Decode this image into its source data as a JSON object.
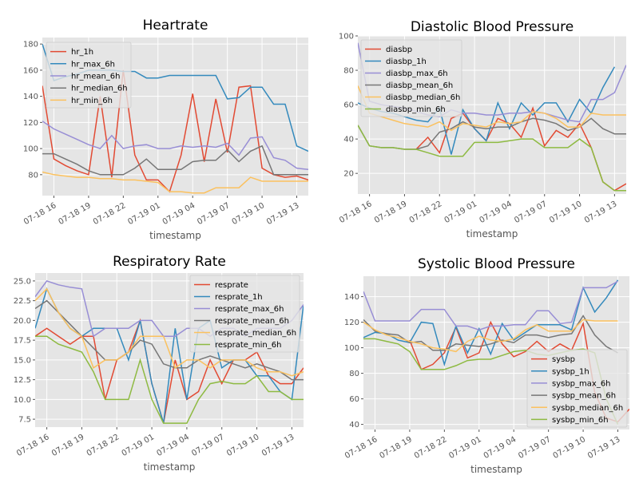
{
  "chart_data": [
    {
      "type": "line",
      "title": "Heartrate",
      "xlabel": "timestamp",
      "ylabel": "",
      "x": [
        "07-18 15:00",
        "07-18 16:00",
        "07-18 17:00",
        "07-18 18:00",
        "07-18 19:00",
        "07-18 20:00",
        "07-18 21:00",
        "07-18 22:00",
        "07-18 23:00",
        "07-19 00:00",
        "07-19 01:00",
        "07-19 02:00",
        "07-19 03:00",
        "07-19 04:00",
        "07-19 05:00",
        "07-19 06:00",
        "07-19 07:00",
        "07-19 08:00",
        "07-19 09:00",
        "07-19 10:00",
        "07-19 11:00",
        "07-19 12:00",
        "07-19 13:00",
        "07-19 14:00"
      ],
      "xticks": [
        "07-18 16",
        "07-18 19",
        "07-18 22",
        "07-19 01",
        "07-19 04",
        "07-19 07",
        "07-19 10",
        "07-19 13"
      ],
      "ylim": [
        64,
        185
      ],
      "yticks": [
        80,
        100,
        120,
        140,
        160,
        180
      ],
      "grid": true,
      "legend": "top-left",
      "series": [
        {
          "name": "hr_1h",
          "color": "#e24a33",
          "values": [
            148,
            92,
            87,
            83,
            80,
            140,
            78,
            160,
            95,
            76,
            76,
            67,
            95,
            142,
            90,
            138,
            97,
            147,
            148,
            85,
            80,
            78,
            79,
            76
          ]
        },
        {
          "name": "hr_max_6h",
          "color": "#348abd",
          "values": [
            180,
            152,
            155,
            157,
            160,
            160,
            160,
            159,
            159,
            154,
            154,
            156,
            156,
            156,
            156,
            156,
            138,
            139,
            147,
            147,
            134,
            134,
            102,
            98
          ]
        },
        {
          "name": "hr_mean_6h",
          "color": "#988ed5",
          "values": [
            121,
            115,
            111,
            107,
            103,
            100,
            110,
            100,
            102,
            103,
            100,
            100,
            102,
            101,
            102,
            101,
            104,
            95,
            108,
            109,
            93,
            91,
            85,
            84
          ]
        },
        {
          "name": "hr_median_6h",
          "color": "#777777",
          "values": [
            96,
            96,
            92,
            88,
            83,
            80,
            80,
            80,
            85,
            92,
            84,
            84,
            84,
            90,
            91,
            91,
            99,
            90,
            98,
            102,
            80,
            80,
            80,
            80
          ]
        },
        {
          "name": "hr_min_6h",
          "color": "#fbc15e",
          "values": [
            82,
            80,
            79,
            78,
            78,
            77,
            77,
            76,
            76,
            75,
            74,
            67,
            67,
            66,
            66,
            70,
            70,
            70,
            78,
            75,
            75,
            75,
            75,
            75
          ]
        }
      ]
    },
    {
      "type": "line",
      "title": "Diastolic Blood Pressure",
      "xlabel": "timestamp",
      "ylabel": "",
      "x": [
        "07-18 15:00",
        "07-18 16:00",
        "07-18 17:00",
        "07-18 18:00",
        "07-18 19:00",
        "07-18 20:00",
        "07-18 21:00",
        "07-18 22:00",
        "07-18 23:00",
        "07-19 00:00",
        "07-19 01:00",
        "07-19 02:00",
        "07-19 03:00",
        "07-19 04:00",
        "07-19 05:00",
        "07-19 06:00",
        "07-19 07:00",
        "07-19 08:00",
        "07-19 09:00",
        "07-19 10:00",
        "07-19 11:00",
        "07-19 12:00",
        "07-19 13:00",
        "07-19 14:00"
      ],
      "xticks": [
        "07-18 16",
        "07-18 19",
        "07-18 22",
        "07-19 01",
        "07-19 04",
        "07-19 07",
        "07-19 10",
        "07-19 13"
      ],
      "ylim": [
        8,
        100
      ],
      "yticks": [
        20,
        40,
        60,
        80,
        100
      ],
      "grid": true,
      "legend": "top-left",
      "series": [
        {
          "name": "diasbp",
          "color": "#e24a33",
          "values": [
            null,
            null,
            null,
            null,
            null,
            34,
            41,
            32,
            52,
            55,
            46,
            39,
            52,
            49,
            41,
            58,
            36,
            45,
            41,
            49,
            35,
            15,
            10,
            14
          ]
        },
        {
          "name": "diasbp_1h",
          "color": "#348abd",
          "values": [
            61,
            58,
            56,
            55,
            53,
            51,
            50,
            58,
            31,
            57,
            46,
            39,
            61,
            46,
            61,
            54,
            61,
            61,
            50,
            63,
            55,
            70,
            82,
            null
          ]
        },
        {
          "name": "diasbp_max_6h",
          "color": "#988ed5",
          "values": [
            96,
            62,
            60,
            59,
            58,
            56,
            54,
            53,
            57,
            55,
            55,
            54,
            54,
            55,
            55,
            56,
            55,
            53,
            51,
            50,
            63,
            63,
            67,
            83
          ]
        },
        {
          "name": "diasbp_mean_6h",
          "color": "#777777",
          "values": [
            48,
            36,
            35,
            35,
            34,
            34,
            36,
            44,
            46,
            50,
            47,
            46,
            47,
            47,
            50,
            52,
            51,
            49,
            45,
            47,
            52,
            46,
            43,
            43
          ]
        },
        {
          "name": "diasbp_median_6h",
          "color": "#fbc15e",
          "values": [
            71,
            55,
            53,
            51,
            49,
            48,
            47,
            50,
            45,
            49,
            48,
            47,
            50,
            49,
            50,
            56,
            55,
            52,
            47,
            47,
            55,
            54,
            54,
            54
          ]
        },
        {
          "name": "diasbp_min_6h",
          "color": "#8eba42",
          "values": [
            48,
            36,
            35,
            35,
            34,
            34,
            32,
            30,
            30,
            30,
            38,
            38,
            38,
            39,
            40,
            40,
            35,
            35,
            35,
            40,
            35,
            15,
            10,
            10
          ]
        }
      ]
    },
    {
      "type": "line",
      "title": "Respiratory Rate",
      "xlabel": "timestamp",
      "ylabel": "",
      "x": [
        "07-18 15:00",
        "07-18 16:00",
        "07-18 17:00",
        "07-18 18:00",
        "07-18 19:00",
        "07-18 20:00",
        "07-18 21:00",
        "07-18 22:00",
        "07-18 23:00",
        "07-19 00:00",
        "07-19 01:00",
        "07-19 02:00",
        "07-19 03:00",
        "07-19 04:00",
        "07-19 05:00",
        "07-19 06:00",
        "07-19 07:00",
        "07-19 08:00",
        "07-19 09:00",
        "07-19 10:00",
        "07-19 11:00",
        "07-19 12:00",
        "07-19 13:00",
        "07-19 14:00"
      ],
      "xticks": [
        "07-18 16",
        "07-18 19",
        "07-18 22",
        "07-19 01",
        "07-19 04",
        "07-19 07",
        "07-19 10",
        "07-19 13"
      ],
      "ylim": [
        6.5,
        26
      ],
      "yticks": [
        7.5,
        10.0,
        12.5,
        15.0,
        17.5,
        20.0,
        22.5,
        25.0
      ],
      "grid": true,
      "legend": "top-right",
      "series": [
        {
          "name": "resprate",
          "color": "#e24a33",
          "values": [
            18,
            19,
            18,
            17,
            18,
            18,
            10,
            15,
            16,
            20,
            12,
            7,
            15,
            10,
            11,
            15,
            12,
            15,
            15,
            16,
            13,
            12,
            12,
            14
          ]
        },
        {
          "name": "resprate_1h",
          "color": "#348abd",
          "values": [
            19,
            24,
            21,
            19,
            18,
            19,
            19,
            19,
            15,
            20,
            12,
            7,
            19,
            10,
            19,
            20,
            14,
            15,
            15,
            13,
            13,
            11,
            10,
            22
          ]
        },
        {
          "name": "resprate_max_6h",
          "color": "#988ed5",
          "values": [
            23,
            25,
            24.5,
            24.2,
            24,
            18,
            19,
            19,
            19,
            20,
            20,
            18,
            18,
            19,
            19,
            18,
            19,
            19,
            18,
            19,
            19,
            19,
            20,
            22
          ]
        },
        {
          "name": "resprate_mean_6h",
          "color": "#777777",
          "values": [
            21.5,
            22.5,
            21,
            19.5,
            18,
            16.5,
            15,
            15,
            16,
            17.5,
            17,
            14.5,
            14,
            14,
            15,
            15.5,
            15,
            14.5,
            14,
            14.5,
            14,
            13.5,
            12.5,
            12.5
          ]
        },
        {
          "name": "resprate_median_6h",
          "color": "#fbc15e",
          "values": [
            22.5,
            24,
            21,
            19,
            18,
            14,
            15,
            15,
            16,
            18,
            18,
            18,
            14,
            15,
            15,
            14,
            15,
            15,
            15,
            14,
            13.5,
            13.5,
            13,
            13.5
          ]
        },
        {
          "name": "resprate_min_6h",
          "color": "#8eba42",
          "values": [
            18,
            18,
            17,
            16.5,
            16,
            13.5,
            10,
            10,
            10,
            15,
            10,
            7,
            7,
            7,
            10,
            12,
            12.3,
            12,
            12,
            13,
            11,
            11,
            10,
            10
          ]
        }
      ]
    },
    {
      "type": "line",
      "title": "Systolic Blood Pressure",
      "xlabel": "timestamp",
      "ylabel": "",
      "x": [
        "07-18 15:00",
        "07-18 16:00",
        "07-18 17:00",
        "07-18 18:00",
        "07-18 19:00",
        "07-18 20:00",
        "07-18 21:00",
        "07-18 22:00",
        "07-18 23:00",
        "07-19 00:00",
        "07-19 01:00",
        "07-19 02:00",
        "07-19 03:00",
        "07-19 04:00",
        "07-19 05:00",
        "07-19 06:00",
        "07-19 07:00",
        "07-19 08:00",
        "07-19 09:00",
        "07-19 10:00",
        "07-19 11:00",
        "07-19 12:00",
        "07-19 13:00",
        "07-19 14:00"
      ],
      "xticks": [
        "07-18 16",
        "07-18 19",
        "07-18 22",
        "07-19 01",
        "07-19 04",
        "07-19 07",
        "07-19 10",
        "07-19 13"
      ],
      "ylim": [
        36,
        156
      ],
      "yticks": [
        40,
        60,
        80,
        100,
        120,
        140
      ],
      "grid": true,
      "legend": "bottom-right",
      "series": [
        {
          "name": "sysbp",
          "color": "#e24a33",
          "values": [
            null,
            null,
            null,
            null,
            106,
            83,
            87,
            96,
            116,
            92,
            96,
            120,
            103,
            93,
            97,
            105,
            97,
            103,
            98,
            119,
            65,
            45,
            42,
            52
          ]
        },
        {
          "name": "sysbp_1h",
          "color": "#348abd",
          "values": [
            108,
            112,
            111,
            106,
            104,
            120,
            119,
            87,
            117,
            96,
            115,
            95,
            119,
            106,
            112,
            118,
            118,
            118,
            114,
            147,
            128,
            139,
            153,
            null
          ]
        },
        {
          "name": "sysbp_max_6h",
          "color": "#988ed5",
          "values": [
            144,
            121,
            121,
            121,
            121,
            130,
            130,
            130,
            117,
            117,
            114,
            117,
            117,
            118,
            118,
            129,
            129,
            119,
            120,
            147,
            147,
            147,
            152,
            null
          ]
        },
        {
          "name": "sysbp_mean_6h",
          "color": "#777777",
          "values": [
            122,
            113,
            111,
            110,
            104,
            105,
            98,
            98,
            103,
            102,
            101,
            103,
            106,
            104,
            110,
            110,
            108,
            110,
            111,
            125,
            110,
            101,
            96,
            null
          ]
        },
        {
          "name": "sysbp_median_6h",
          "color": "#fbc15e",
          "values": [
            120,
            114,
            110,
            108,
            105,
            103,
            100,
            99,
            97,
            105,
            109,
            106,
            105,
            107,
            114,
            118,
            113,
            113,
            113,
            122,
            121,
            121,
            121,
            null
          ]
        },
        {
          "name": "sysbp_min_6h",
          "color": "#8eba42",
          "values": [
            107,
            107,
            105,
            103,
            97,
            83,
            83,
            83,
            86,
            90,
            91,
            91,
            94,
            97,
            98,
            95,
            94,
            96,
            98,
            99,
            96,
            60,
            40,
            null
          ]
        }
      ]
    }
  ]
}
